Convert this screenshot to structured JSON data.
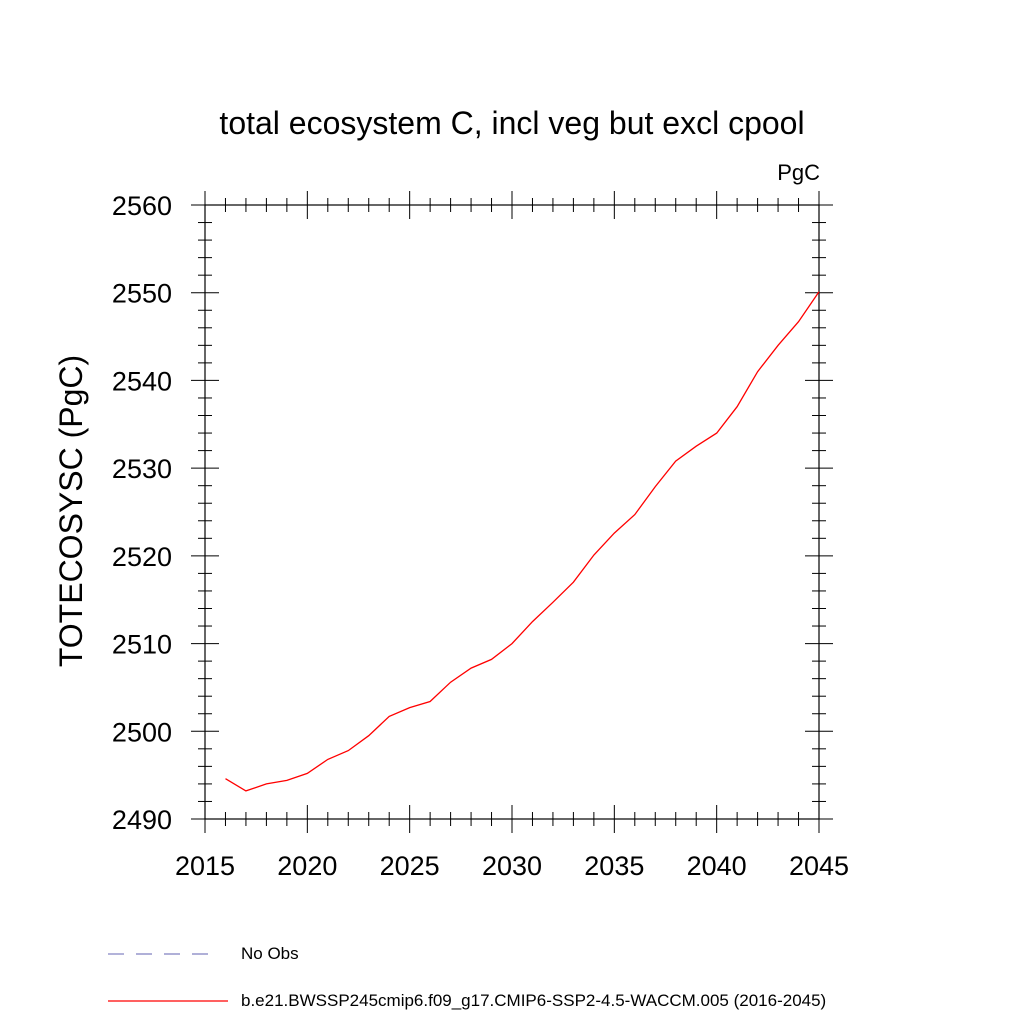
{
  "chart_data": {
    "type": "line",
    "title": "total ecosystem C, incl veg but excl cpool",
    "units": "PgC",
    "xlabel": "",
    "ylabel": "TOTECOSYSC  (PgC)",
    "xlim": [
      2015,
      2045
    ],
    "ylim": [
      2490,
      2560
    ],
    "x_ticks": [
      2015,
      2020,
      2025,
      2030,
      2035,
      2040,
      2045
    ],
    "y_ticks": [
      2490,
      2500,
      2510,
      2520,
      2530,
      2540,
      2550,
      2560
    ],
    "x_tick_labels": [
      "2015",
      "2020",
      "2025",
      "2030",
      "2035",
      "2040",
      "2045"
    ],
    "y_tick_labels": [
      "2490",
      "2500",
      "2510",
      "2520",
      "2530",
      "2540",
      "2550",
      "2560"
    ],
    "series": [
      {
        "name": "b.e21.BWSSP245cmip6.f09_g17.CMIP6-SSP2-4.5-WACCM.005 (2016-2045)",
        "color": "#ff0000",
        "style": "solid",
        "x": [
          2016,
          2017,
          2018,
          2019,
          2020,
          2021,
          2022,
          2023,
          2024,
          2025,
          2026,
          2027,
          2028,
          2029,
          2030,
          2031,
          2032,
          2033,
          2034,
          2035,
          2036,
          2037,
          2038,
          2039,
          2040,
          2041,
          2042,
          2043,
          2044,
          2045
        ],
        "y": [
          2494.6,
          2493.2,
          2494.0,
          2494.4,
          2495.2,
          2496.8,
          2497.8,
          2499.5,
          2501.7,
          2502.7,
          2503.4,
          2505.6,
          2507.2,
          2508.2,
          2510.0,
          2512.5,
          2514.7,
          2517.0,
          2520.1,
          2522.6,
          2524.7,
          2527.9,
          2530.8,
          2532.5,
          2534.0,
          2537.0,
          2541.0,
          2544.0,
          2546.7,
          2550.1
        ]
      }
    ],
    "legend": {
      "placement": "bottom",
      "entries": [
        {
          "label": "No Obs",
          "color": "#8080c0",
          "style": "dashed"
        },
        {
          "label": "b.e21.BWSSP245cmip6.f09_g17.CMIP6-SSP2-4.5-WACCM.005 (2016-2045)",
          "color": "#ff0000",
          "style": "solid"
        }
      ]
    }
  }
}
